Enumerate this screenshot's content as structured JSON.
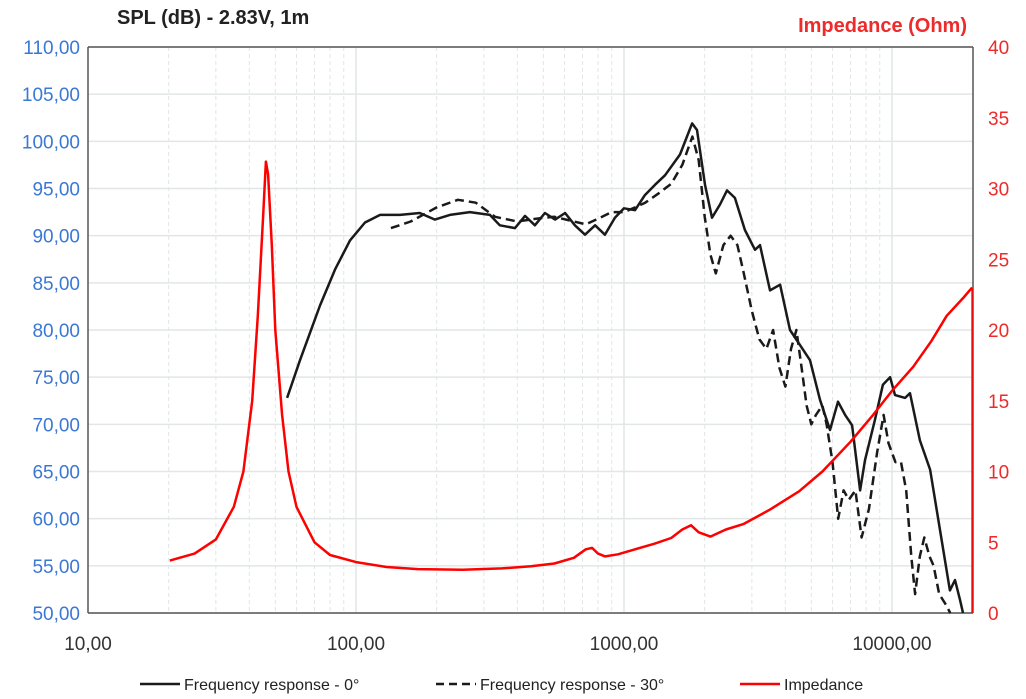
{
  "chart_data": {
    "type": "line",
    "title_left": "SPL (dB) - 2.83V, 1m",
    "title_right": "Impedance (Ohm)",
    "xscale": "log",
    "xlim": [
      10,
      19900
    ],
    "ylim": [
      50,
      110
    ],
    "y2lim": [
      0,
      40
    ],
    "xticks": [
      "10,00",
      "100,00",
      "1000,00",
      "10000,00"
    ],
    "xtick_values": [
      10,
      100,
      1000,
      10000
    ],
    "yticks": [
      "50,00",
      "55,00",
      "60,00",
      "65,00",
      "70,00",
      "75,00",
      "80,00",
      "85,00",
      "90,00",
      "95,00",
      "100,00",
      "105,00",
      "110,00"
    ],
    "ytick_values": [
      50,
      55,
      60,
      65,
      70,
      75,
      80,
      85,
      90,
      95,
      100,
      105,
      110
    ],
    "y2ticks": [
      "0",
      "5",
      "10",
      "15",
      "20",
      "25",
      "30",
      "35",
      "40"
    ],
    "y2tick_values": [
      0,
      5,
      10,
      15,
      20,
      25,
      30,
      35,
      40
    ],
    "grid": true,
    "legend_position": "bottom",
    "colors": {
      "left_axis": "#3a78d4",
      "right_axis": "#ee2a2a",
      "spl": "#1a1a1a",
      "impedance": "#ff0000",
      "grid": "#e2e6e6"
    },
    "series": [
      {
        "name": "Frequency response - 0°",
        "axis": "left",
        "style": "solid",
        "points": [
          [
            55.3,
            72.8
          ],
          [
            61.8,
            76.8
          ],
          [
            73.4,
            82.6
          ],
          [
            83.5,
            86.4
          ],
          [
            95,
            89.5
          ],
          [
            108,
            91.4
          ],
          [
            123,
            92.2
          ],
          [
            146,
            92.2
          ],
          [
            173,
            92.4
          ],
          [
            197,
            91.7
          ],
          [
            224,
            92.2
          ],
          [
            266,
            92.5
          ],
          [
            316,
            92.2
          ],
          [
            344,
            91.1
          ],
          [
            392,
            90.8
          ],
          [
            427,
            92.1
          ],
          [
            465,
            91.1
          ],
          [
            507,
            92.4
          ],
          [
            553,
            91.7
          ],
          [
            603,
            92.4
          ],
          [
            656,
            91.1
          ],
          [
            715,
            90.1
          ],
          [
            780,
            91.1
          ],
          [
            849,
            90.1
          ],
          [
            925,
            91.9
          ],
          [
            1000,
            92.9
          ],
          [
            1099,
            92.7
          ],
          [
            1197,
            94.3
          ],
          [
            1306,
            95.4
          ],
          [
            1422,
            96.4
          ],
          [
            1618,
            98.6
          ],
          [
            1795,
            101.9
          ],
          [
            1872,
            101.2
          ],
          [
            2005,
            95.4
          ],
          [
            2129,
            91.9
          ],
          [
            2281,
            93.3
          ],
          [
            2422,
            94.8
          ],
          [
            2594,
            94.0
          ],
          [
            2826,
            90.6
          ],
          [
            3082,
            88.5
          ],
          [
            3217,
            89.0
          ],
          [
            3506,
            84.2
          ],
          [
            3822,
            84.8
          ],
          [
            4163,
            80.0
          ],
          [
            4537,
            78.4
          ],
          [
            4943,
            76.8
          ],
          [
            5387,
            72.6
          ],
          [
            5872,
            69.4
          ],
          [
            6290,
            72.4
          ],
          [
            6683,
            71.0
          ],
          [
            7098,
            69.9
          ],
          [
            7604,
            63.0
          ],
          [
            7930,
            66.2
          ],
          [
            8643,
            70.5
          ],
          [
            9250,
            74.2
          ],
          [
            9840,
            75.0
          ],
          [
            10260,
            73.1
          ],
          [
            11190,
            72.8
          ],
          [
            11670,
            73.3
          ],
          [
            12710,
            68.3
          ],
          [
            13870,
            65.2
          ],
          [
            15110,
            58.8
          ],
          [
            16450,
            52.4
          ],
          [
            17180,
            53.5
          ],
          [
            17940,
            51.4
          ],
          [
            18400,
            50.0
          ]
        ]
      },
      {
        "name": "Frequency response - 30°",
        "axis": "left",
        "style": "dashed",
        "points": [
          [
            135,
            90.8
          ],
          [
            160,
            91.5
          ],
          [
            200,
            93.0
          ],
          [
            240,
            93.8
          ],
          [
            280,
            93.5
          ],
          [
            330,
            92.0
          ],
          [
            400,
            91.5
          ],
          [
            470,
            91.8
          ],
          [
            550,
            92.0
          ],
          [
            650,
            91.5
          ],
          [
            720,
            91.2
          ],
          [
            800,
            91.8
          ],
          [
            900,
            92.5
          ],
          [
            1000,
            92.5
          ],
          [
            1100,
            93.0
          ],
          [
            1200,
            93.5
          ],
          [
            1350,
            94.5
          ],
          [
            1500,
            95.5
          ],
          [
            1650,
            97.5
          ],
          [
            1800,
            100.5
          ],
          [
            1900,
            98
          ],
          [
            2000,
            92
          ],
          [
            2100,
            88
          ],
          [
            2200,
            86
          ],
          [
            2350,
            89
          ],
          [
            2500,
            90
          ],
          [
            2650,
            89
          ],
          [
            2800,
            86
          ],
          [
            3000,
            82
          ],
          [
            3200,
            79
          ],
          [
            3400,
            78
          ],
          [
            3600,
            80
          ],
          [
            3800,
            76
          ],
          [
            4000,
            74
          ],
          [
            4200,
            78
          ],
          [
            4400,
            80
          ],
          [
            4600,
            76
          ],
          [
            4800,
            72
          ],
          [
            5000,
            70
          ],
          [
            5200,
            71
          ],
          [
            5500,
            72
          ],
          [
            5700,
            70
          ],
          [
            6000,
            66
          ],
          [
            6300,
            60
          ],
          [
            6600,
            63
          ],
          [
            6900,
            62
          ],
          [
            7300,
            63
          ],
          [
            7700,
            58
          ],
          [
            8200,
            61
          ],
          [
            8800,
            67
          ],
          [
            9300,
            71
          ],
          [
            9700,
            68
          ],
          [
            10300,
            66
          ],
          [
            10800,
            66
          ],
          [
            11300,
            63
          ],
          [
            11800,
            56
          ],
          [
            12200,
            52
          ],
          [
            12700,
            56
          ],
          [
            13200,
            58
          ],
          [
            13800,
            56
          ],
          [
            14300,
            55
          ],
          [
            15000,
            52
          ],
          [
            15800,
            51
          ],
          [
            16500,
            50
          ]
        ]
      },
      {
        "name": "Impedance",
        "axis": "right",
        "style": "solid",
        "points": [
          [
            20.2,
            3.7
          ],
          [
            25,
            4.2
          ],
          [
            30,
            5.2
          ],
          [
            35,
            7.5
          ],
          [
            38,
            10
          ],
          [
            41,
            15
          ],
          [
            43,
            21
          ],
          [
            45,
            28
          ],
          [
            46.1,
            31.9
          ],
          [
            47,
            31
          ],
          [
            48.5,
            26
          ],
          [
            50,
            20
          ],
          [
            53,
            14
          ],
          [
            56,
            10
          ],
          [
            60,
            7.5
          ],
          [
            70,
            5
          ],
          [
            80,
            4.1
          ],
          [
            100,
            3.6
          ],
          [
            130,
            3.25
          ],
          [
            170,
            3.1
          ],
          [
            250,
            3.05
          ],
          [
            350,
            3.15
          ],
          [
            450,
            3.3
          ],
          [
            550,
            3.5
          ],
          [
            650,
            3.9
          ],
          [
            720,
            4.5
          ],
          [
            760,
            4.6
          ],
          [
            800,
            4.2
          ],
          [
            850,
            4.0
          ],
          [
            950,
            4.15
          ],
          [
            1100,
            4.5
          ],
          [
            1300,
            4.9
          ],
          [
            1500,
            5.3
          ],
          [
            1650,
            5.9
          ],
          [
            1780,
            6.2
          ],
          [
            1900,
            5.7
          ],
          [
            2100,
            5.4
          ],
          [
            2400,
            5.9
          ],
          [
            2800,
            6.3
          ],
          [
            3500,
            7.3
          ],
          [
            4500,
            8.6
          ],
          [
            5500,
            10
          ],
          [
            7000,
            12.1
          ],
          [
            8500,
            14
          ],
          [
            10000,
            15.7
          ],
          [
            12000,
            17.4
          ],
          [
            14000,
            19.2
          ],
          [
            16000,
            21
          ],
          [
            18500,
            22.3
          ],
          [
            19900,
            23.0
          ]
        ]
      }
    ]
  }
}
